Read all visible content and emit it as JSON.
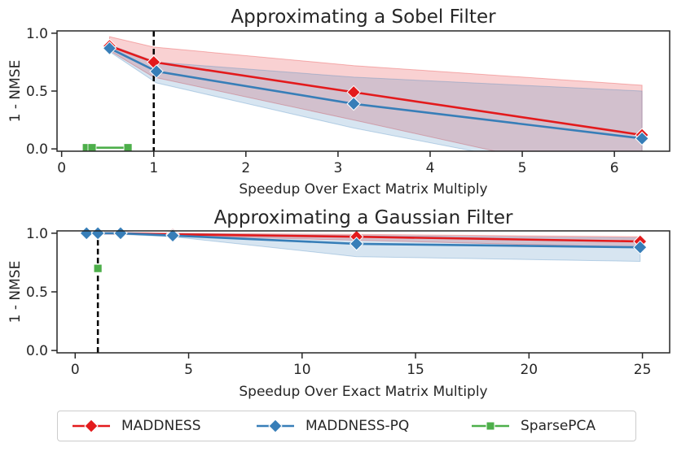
{
  "chart_data": [
    {
      "type": "line",
      "title": "Approximating a Sobel Filter",
      "xlabel": "Speedup Over Exact Matrix Multiply",
      "ylabel": "1 - NMSE",
      "xlim": [
        -0.05,
        6.6
      ],
      "ylim": [
        -0.02,
        1.02
      ],
      "xticks": [
        0,
        1,
        2,
        3,
        4,
        5,
        6
      ],
      "xtick_labels": [
        "0",
        "1",
        "2",
        "3",
        "4",
        "5",
        "6"
      ],
      "yticks": [
        0.0,
        0.5,
        1.0
      ],
      "ytick_labels": [
        "0.0",
        "0.5",
        "1.0"
      ],
      "reference_line_x": 1,
      "series": [
        {
          "name": "MADDNESS",
          "color": "#e31a1c",
          "marker": "diamond",
          "x": [
            0.52,
            1.0,
            3.17,
            6.3
          ],
          "y": [
            0.89,
            0.75,
            0.49,
            0.12
          ],
          "band_upper": [
            0.97,
            0.88,
            0.72,
            0.55
          ],
          "band_lower": [
            0.85,
            0.62,
            0.25,
            -0.3
          ]
        },
        {
          "name": "MADDNESS-PQ",
          "color": "#377eb8",
          "marker": "diamond",
          "x": [
            0.52,
            1.03,
            3.17,
            6.3
          ],
          "y": [
            0.87,
            0.67,
            0.39,
            0.09
          ],
          "band_upper": [
            0.9,
            0.75,
            0.62,
            0.5
          ],
          "band_lower": [
            0.84,
            0.57,
            0.18,
            -0.3
          ]
        },
        {
          "name": "SparsePCA",
          "color": "#4daf4a",
          "marker": "square",
          "x": [
            0.27,
            0.33,
            0.72
          ],
          "y": [
            0.01,
            0.01,
            0.01
          ]
        }
      ]
    },
    {
      "type": "line",
      "title": "Approximating a Gaussian Filter",
      "xlabel": "Speedup Over Exact Matrix Multiply",
      "ylabel": "1 - NMSE",
      "xlim": [
        -0.8,
        26.2
      ],
      "ylim": [
        -0.02,
        1.02
      ],
      "xticks": [
        0,
        5,
        10,
        15,
        20,
        25
      ],
      "xtick_labels": [
        "0",
        "5",
        "10",
        "15",
        "20",
        "25"
      ],
      "yticks": [
        0.0,
        0.5,
        1.0
      ],
      "ytick_labels": [
        "0.0",
        "0.5",
        "1.0"
      ],
      "reference_line_x": 1,
      "series": [
        {
          "name": "MADDNESS",
          "color": "#e31a1c",
          "marker": "diamond",
          "x": [
            0.5,
            1.0,
            2.0,
            4.3,
            12.4,
            24.9
          ],
          "y": [
            1.0,
            1.0,
            1.0,
            0.99,
            0.97,
            0.93
          ],
          "band_upper": [
            1.0,
            1.0,
            1.0,
            1.0,
            0.99,
            0.97
          ],
          "band_lower": [
            1.0,
            1.0,
            0.99,
            0.98,
            0.94,
            0.88
          ]
        },
        {
          "name": "MADDNESS-PQ",
          "color": "#377eb8",
          "marker": "diamond",
          "x": [
            0.5,
            1.0,
            2.0,
            4.3,
            12.4,
            24.9
          ],
          "y": [
            1.0,
            1.0,
            1.0,
            0.98,
            0.91,
            0.88
          ],
          "band_upper": [
            1.0,
            1.0,
            1.0,
            1.0,
            0.98,
            0.96
          ],
          "band_lower": [
            1.0,
            1.0,
            0.99,
            0.97,
            0.8,
            0.76
          ]
        },
        {
          "name": "SparsePCA",
          "color": "#4daf4a",
          "marker": "square",
          "x": [
            1.0
          ],
          "y": [
            0.7
          ]
        }
      ]
    }
  ],
  "legend": {
    "placement": "bottom",
    "items": [
      {
        "label": "MADDNESS",
        "color": "#e31a1c",
        "marker": "diamond"
      },
      {
        "label": "MADDNESS-PQ",
        "color": "#377eb8",
        "marker": "diamond"
      },
      {
        "label": "SparsePCA",
        "color": "#4daf4a",
        "marker": "square"
      }
    ]
  }
}
